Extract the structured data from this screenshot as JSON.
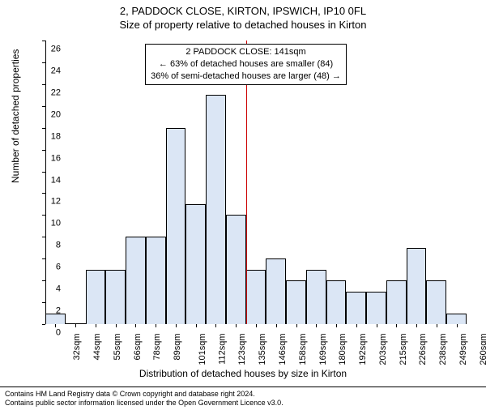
{
  "titles": {
    "main": "2, PADDOCK CLOSE, KIRTON, IPSWICH, IP10 0FL",
    "sub": "Size of property relative to detached houses in Kirton"
  },
  "axes": {
    "ylabel": "Number of detached properties",
    "xlabel": "Distribution of detached houses by size in Kirton",
    "ylim": [
      0,
      26
    ],
    "ytick_step": 2,
    "xtick_labels": [
      "32sqm",
      "44sqm",
      "55sqm",
      "66sqm",
      "78sqm",
      "89sqm",
      "101sqm",
      "112sqm",
      "123sqm",
      "135sqm",
      "146sqm",
      "158sqm",
      "169sqm",
      "180sqm",
      "192sqm",
      "203sqm",
      "215sqm",
      "226sqm",
      "238sqm",
      "249sqm",
      "260sqm"
    ],
    "tick_fontsize": 11,
    "label_fontsize": 12
  },
  "chart": {
    "type": "histogram",
    "n_bins": 21,
    "bar_color": "#dbe6f5",
    "bar_border": "#000000",
    "background_color": "#ffffff",
    "values": [
      1,
      0,
      5,
      5,
      8,
      8,
      18,
      11,
      21,
      10,
      5,
      6,
      4,
      5,
      4,
      3,
      3,
      4,
      7,
      4,
      1
    ]
  },
  "marker": {
    "x_index_after": 9,
    "color": "#cc0000",
    "width": 1
  },
  "annotation": {
    "lines": [
      "2 PADDOCK CLOSE: 141sqm",
      "← 63% of detached houses are smaller (84)",
      "36% of semi-detached houses are larger (48) →"
    ],
    "border_color": "#000000",
    "background": "#ffffff",
    "fontsize": 11
  },
  "footer": {
    "line1": "Contains HM Land Registry data © Crown copyright and database right 2024.",
    "line2": "Contains public sector information licensed under the Open Government Licence v3.0.",
    "fontsize": 9
  }
}
